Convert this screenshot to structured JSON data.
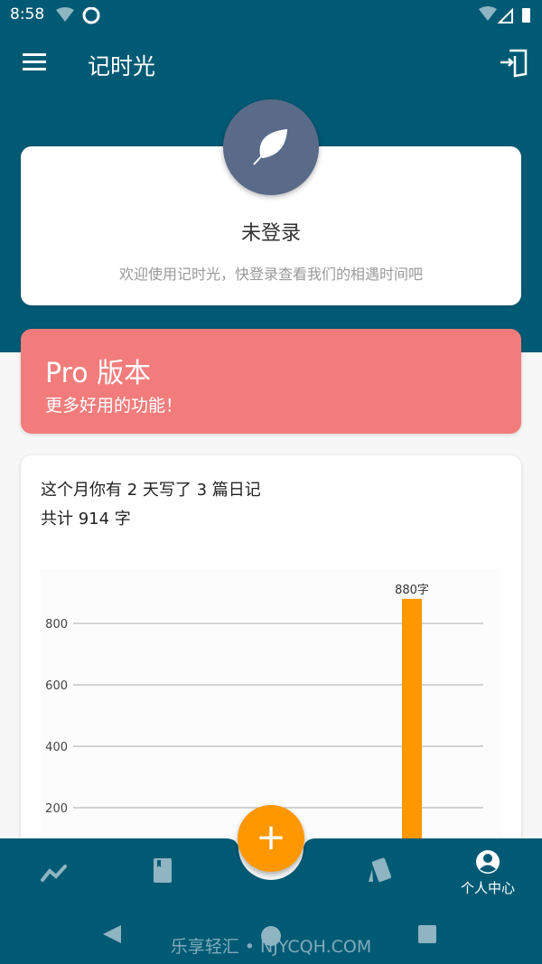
{
  "status_bar": {
    "time": "8:58"
  },
  "app_bar": {
    "title": "记时光",
    "menu_icon": "hamburger-icon",
    "login_icon": "login-door-icon"
  },
  "profile": {
    "name": "未登录",
    "subtitle": "欢迎使用记时光，快登录查看我们的相遇时间吧",
    "avatar_icon": "feather-icon"
  },
  "pro": {
    "title": "Pro 版本",
    "subtitle": "更多好用的功能！"
  },
  "stats": {
    "line1": "这个月你有 2 天写了 3 篇日记",
    "line2": "共计 914 字"
  },
  "chart_data": {
    "type": "bar",
    "y_ticks": [
      200,
      400,
      600,
      800
    ],
    "values": [
      880
    ],
    "data_labels": [
      "880字"
    ],
    "bar_color": "#ff9800",
    "grid": true
  },
  "bottom_nav": {
    "items": [
      {
        "icon": "trend-line-icon"
      },
      {
        "icon": "diary-book-icon"
      },
      {
        "icon": "cards-icon"
      },
      {
        "icon": "account-circle-icon",
        "label": "个人中心",
        "active": true
      }
    ],
    "fab": "+"
  },
  "watermark": "乐享轻汇 • NJYCQH.COM",
  "colors": {
    "primary": "#005a74",
    "accent": "#ff9800",
    "pro": "#f27c7c"
  }
}
